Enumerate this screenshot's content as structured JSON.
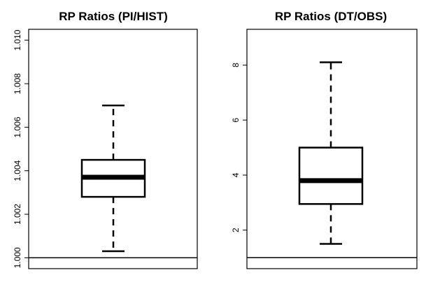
{
  "chart_data": [
    {
      "type": "box",
      "title": "RP Ratios (PI/HIST)",
      "ylim": [
        0.9995,
        1.0105
      ],
      "yticks": [
        {
          "value": 1.0,
          "label": "1.000"
        },
        {
          "value": 1.002,
          "label": "1.002"
        },
        {
          "value": 1.004,
          "label": "1.004"
        },
        {
          "value": 1.006,
          "label": "1.006"
        },
        {
          "value": 1.008,
          "label": "1.008"
        },
        {
          "value": 1.01,
          "label": "1.010"
        }
      ],
      "box": {
        "whisker_low": 1.0003,
        "q1": 1.0028,
        "median": 1.0037,
        "q3": 1.0045,
        "whisker_high": 1.007
      },
      "reference_line": 1.0,
      "grid": false
    },
    {
      "type": "box",
      "title": "RP Ratios (DT/OBS)",
      "ylim": [
        0.6,
        9.3
      ],
      "yticks": [
        {
          "value": 2,
          "label": "2"
        },
        {
          "value": 4,
          "label": "4"
        },
        {
          "value": 6,
          "label": "6"
        },
        {
          "value": 8,
          "label": "8"
        }
      ],
      "box": {
        "whisker_low": 1.5,
        "q1": 2.95,
        "median": 3.8,
        "q3": 5.0,
        "whisker_high": 8.1
      },
      "reference_line": 1.0,
      "grid": false
    }
  ]
}
